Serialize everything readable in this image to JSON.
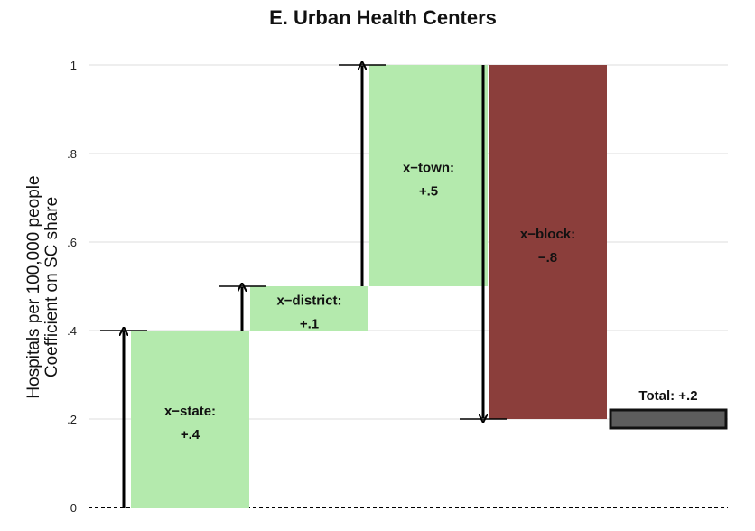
{
  "chart_data": {
    "type": "waterfall",
    "title": "E. Urban Health Centers",
    "ylabel_lines": [
      "Hospitals per 100,000 people",
      "Coefficient on SC share"
    ],
    "ylim": [
      0,
      1
    ],
    "y_ticks": [
      {
        "value": 0,
        "label": "0"
      },
      {
        "value": 0.2,
        "label": ".2"
      },
      {
        "value": 0.4,
        "label": ".4"
      },
      {
        "value": 0.6,
        "label": ".6"
      },
      {
        "value": 0.8,
        "label": ".8"
      },
      {
        "value": 1,
        "label": "1"
      }
    ],
    "grid": true,
    "steps": [
      {
        "name": "x-state",
        "label_lines": [
          "x−state:",
          "+.4"
        ],
        "start": 0,
        "end": 0.4,
        "value": 0.4
      },
      {
        "name": "x-district",
        "label_lines": [
          "x−district:",
          "+.1"
        ],
        "start": 0.4,
        "end": 0.5,
        "value": 0.1
      },
      {
        "name": "x-town",
        "label_lines": [
          "x−town:",
          "+.5"
        ],
        "start": 0.5,
        "end": 1.0,
        "value": 0.5
      },
      {
        "name": "x-block",
        "label_lines": [
          "x−block:",
          "−.8"
        ],
        "start": 1.0,
        "end": 0.2,
        "value": -0.8
      }
    ],
    "total": {
      "name": "total",
      "label": "Total: +.2",
      "value": 0.2
    },
    "colors": {
      "positive": "#b4eaad",
      "negative": "#8b3e3b",
      "total_fill": "#5d5d5d",
      "total_border": "#111111",
      "arrow": "#000000",
      "grid": "#dcdcdc"
    }
  }
}
